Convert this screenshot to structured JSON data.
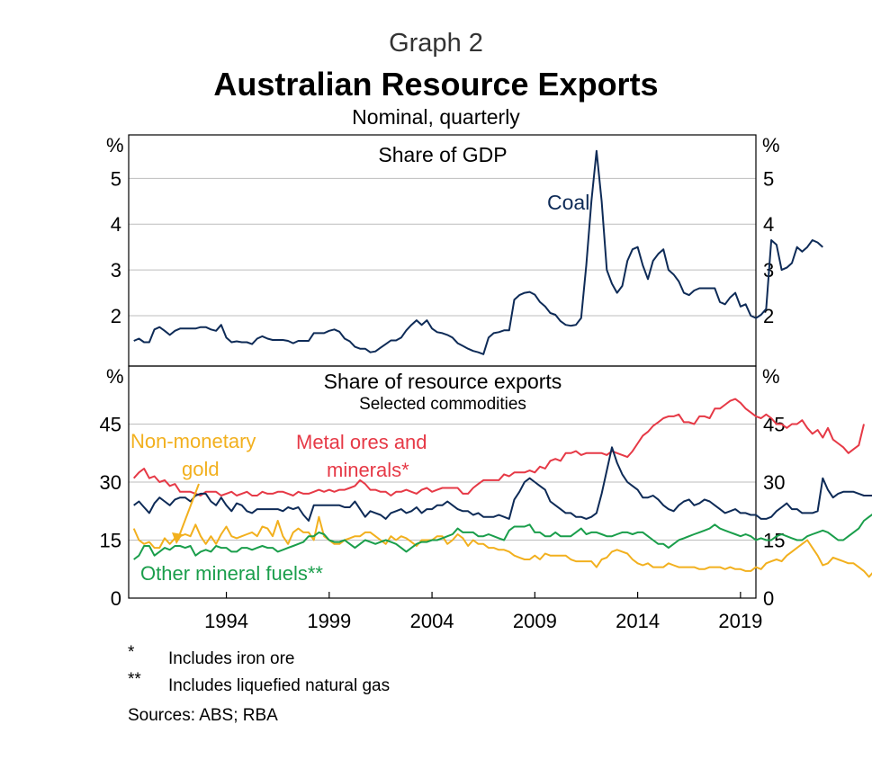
{
  "header": {
    "graph_label": "Graph 2",
    "title": "Australian Resource Exports",
    "subtitle": "Nominal, quarterly"
  },
  "colors": {
    "coal": "#0e2b57",
    "metal": "#e63946",
    "gold": "#f2b01e",
    "fuels": "#1a9e4b",
    "grid": "#bdbdbd",
    "frame": "#000000"
  },
  "chart_data": [
    {
      "type": "line",
      "title": "Share of GDP",
      "ylabel_left": "%",
      "ylabel_right": "%",
      "ylim": [
        0.9,
        5.95
      ],
      "yticks": [
        2,
        3,
        4,
        5
      ],
      "xlim": [
        1989.25,
        2019.75
      ],
      "grid": true,
      "series": [
        {
          "name": "Coal",
          "color_key": "coal",
          "x_start": 1989.5,
          "x_step": 0.25,
          "values": [
            1.45,
            1.5,
            1.42,
            1.42,
            1.7,
            1.75,
            1.67,
            1.58,
            1.67,
            1.72,
            1.72,
            1.72,
            1.72,
            1.75,
            1.75,
            1.7,
            1.67,
            1.8,
            1.52,
            1.42,
            1.44,
            1.42,
            1.42,
            1.38,
            1.5,
            1.55,
            1.5,
            1.47,
            1.47,
            1.47,
            1.45,
            1.4,
            1.45,
            1.45,
            1.45,
            1.62,
            1.62,
            1.62,
            1.67,
            1.7,
            1.65,
            1.5,
            1.44,
            1.32,
            1.28,
            1.28,
            1.2,
            1.22,
            1.3,
            1.38,
            1.46,
            1.46,
            1.52,
            1.68,
            1.8,
            1.9,
            1.8,
            1.9,
            1.72,
            1.64,
            1.62,
            1.58,
            1.52,
            1.4,
            1.34,
            1.28,
            1.23,
            1.2,
            1.16,
            1.52,
            1.62,
            1.64,
            1.68,
            1.68,
            2.35,
            2.45,
            2.5,
            2.52,
            2.46,
            2.3,
            2.2,
            2.06,
            2.02,
            1.88,
            1.8,
            1.78,
            1.8,
            1.95,
            3.1,
            4.5,
            5.6,
            4.5,
            3.0,
            2.7,
            2.5,
            2.65,
            3.2,
            3.45,
            3.5,
            3.1,
            2.8,
            3.2,
            3.35,
            3.45,
            3.0,
            2.9,
            2.75,
            2.5,
            2.45,
            2.55,
            2.6,
            2.6,
            2.6,
            2.6,
            2.3,
            2.25,
            2.4,
            2.5,
            2.2,
            2.25,
            2.0,
            1.95,
            2.02,
            2.15,
            3.65,
            3.55,
            3.0,
            3.05,
            3.15,
            3.5,
            3.4,
            3.5,
            3.65,
            3.6,
            3.5
          ]
        }
      ]
    },
    {
      "type": "line",
      "title": "Share of resource exports",
      "subtitle": "Selected commodities",
      "ylabel_left": "%",
      "ylabel_right": "%",
      "ylim": [
        0,
        60
      ],
      "yticks": [
        0,
        15,
        30,
        45
      ],
      "xlim": [
        1989.25,
        2019.75
      ],
      "grid": true,
      "xticks": [
        1994,
        1999,
        2004,
        2009,
        2014,
        2019
      ],
      "footnote_marks": {
        "metal": "*",
        "fuels": "**"
      },
      "series": [
        {
          "name": "Metal ores and minerals*",
          "color_key": "metal",
          "x_start": 1989.5,
          "x_step": 0.25,
          "values": [
            31,
            32.5,
            33.5,
            31,
            31.5,
            30,
            30.5,
            29,
            29.5,
            27.5,
            27.5,
            27.5,
            27,
            26.5,
            27.5,
            27.5,
            27.5,
            26.5,
            27,
            27.5,
            26.5,
            27,
            27.5,
            26.5,
            26.5,
            27.5,
            27,
            27,
            27.5,
            27.5,
            27,
            26.5,
            27.5,
            27,
            27,
            27.5,
            28,
            27.5,
            28,
            27.5,
            28,
            28,
            28.5,
            29,
            30.5,
            29.5,
            28,
            28,
            27.5,
            27.5,
            26.5,
            27.5,
            27.5,
            28,
            27.5,
            27,
            28,
            28.5,
            27.5,
            28,
            28.5,
            28.5,
            28.5,
            28.5,
            27,
            27,
            28.5,
            29.5,
            30.5,
            30.5,
            30.5,
            30.5,
            32,
            31.5,
            32.5,
            32.5,
            32.5,
            33,
            32.5,
            34,
            33.5,
            35.5,
            36,
            35.5,
            37.5,
            37.5,
            38,
            37,
            37.5,
            37.5,
            37.5,
            37.5,
            37,
            38,
            37.5,
            37,
            36.5,
            38,
            40,
            42,
            43,
            44.5,
            45.5,
            46.5,
            47,
            47,
            47.5,
            45.5,
            45.5,
            45,
            47,
            47,
            46.5,
            49,
            49,
            50,
            51,
            51.5,
            50.5,
            49,
            48,
            47,
            46.5,
            47.5,
            46.5,
            45,
            45,
            44,
            45,
            45,
            46,
            44,
            42.5,
            43.5,
            41.5,
            44,
            41,
            40,
            39,
            37.5,
            38.5,
            39.5,
            45
          ]
        },
        {
          "name": "Coal",
          "color_key": "coal",
          "x_start": 1989.5,
          "x_step": 0.25,
          "values": [
            24,
            25,
            23.5,
            22,
            24.5,
            26,
            25,
            24,
            25.5,
            26,
            26,
            25,
            26.5,
            27,
            27,
            25,
            24,
            26,
            24,
            22.5,
            24.5,
            24,
            22.5,
            22,
            23,
            23,
            23,
            23,
            23,
            22.5,
            23.5,
            23,
            23.5,
            21.5,
            20,
            24,
            24,
            24,
            24,
            24,
            24,
            23.5,
            23.5,
            25,
            23,
            21,
            22.5,
            22,
            21.5,
            20.5,
            22,
            22.5,
            23,
            22,
            22.5,
            23.5,
            22,
            23,
            23,
            24,
            24,
            25,
            24,
            23,
            22.5,
            22.5,
            21.5,
            22,
            21,
            21,
            21,
            21.5,
            21,
            20.5,
            25.5,
            27.5,
            30,
            31,
            30,
            29,
            28,
            25,
            24,
            23,
            22,
            22,
            21,
            21,
            20.5,
            21,
            22,
            27,
            33,
            39,
            35,
            32,
            30,
            29,
            28,
            26,
            26,
            26.5,
            25.5,
            24,
            23,
            22.5,
            24,
            25,
            25.5,
            24,
            24.5,
            25.5,
            25,
            24,
            23,
            22,
            22.5,
            23,
            22,
            22,
            21.5,
            21.5,
            20.5,
            20.5,
            21,
            22.5,
            23.5,
            24.5,
            23,
            23,
            22,
            22,
            22,
            22.5,
            31,
            28,
            26,
            27,
            27.5,
            27.5,
            27.5,
            27,
            26.5,
            26.5,
            26.5,
            26,
            24
          ]
        },
        {
          "name": "Non-monetary gold",
          "color_key": "gold",
          "x_start": 1989.5,
          "x_step": 0.25,
          "values": [
            18,
            15,
            14,
            14.5,
            13,
            13,
            15.5,
            14,
            15.5,
            16,
            16.5,
            16,
            19,
            16,
            14,
            16,
            14,
            16.5,
            18.5,
            16,
            15.5,
            16,
            16.5,
            17,
            16,
            18.5,
            18,
            16,
            20,
            16,
            14,
            17,
            18,
            17,
            17,
            15,
            21,
            16,
            15,
            14,
            14,
            15,
            15.5,
            16,
            16,
            17,
            17,
            16,
            15,
            14,
            16,
            15,
            16,
            15.5,
            14.5,
            13.5,
            15,
            15,
            15,
            16,
            16,
            14,
            15,
            16.5,
            15.5,
            13.5,
            15,
            14,
            14,
            13,
            13,
            12.5,
            12.5,
            12,
            11,
            10.5,
            10,
            10,
            11,
            10,
            11.5,
            11,
            11,
            11,
            11,
            10,
            9.5,
            9.5,
            9.5,
            9.5,
            8,
            10,
            10.5,
            12,
            12.5,
            12,
            11.5,
            10,
            9,
            8.5,
            9,
            8,
            8,
            8,
            9,
            8.5,
            8,
            8,
            8,
            8,
            7.5,
            7.5,
            8,
            8,
            8,
            7.5,
            8,
            7.5,
            7.5,
            7,
            7,
            8,
            7.5,
            9,
            9.5,
            10,
            9.5,
            11,
            12,
            13,
            14,
            15,
            13,
            11,
            8.5,
            9,
            10.5,
            10,
            9.5,
            9,
            9,
            8,
            7,
            5.5,
            7,
            6.5
          ]
        },
        {
          "name": "Other mineral fuels**",
          "color_key": "fuels",
          "x_start": 1989.5,
          "x_step": 0.25,
          "values": [
            10,
            11,
            13.5,
            13.5,
            11,
            12,
            13,
            12.5,
            13.5,
            13.5,
            13,
            13.5,
            11,
            12,
            12.5,
            12,
            13.5,
            13,
            13,
            12,
            12,
            13,
            13,
            12.5,
            13,
            13.5,
            13,
            13,
            12,
            12.5,
            13,
            13.5,
            14,
            14.5,
            16,
            16,
            17,
            16.5,
            15,
            14.5,
            14.5,
            15,
            14,
            13,
            14,
            15,
            14.5,
            14,
            14.5,
            15,
            14.5,
            14,
            13,
            12,
            13,
            14,
            14.5,
            14.5,
            15,
            15,
            15.5,
            16,
            16.5,
            18,
            17,
            17,
            17,
            16,
            16,
            16.5,
            16,
            15.5,
            15,
            17.5,
            18.5,
            18.5,
            18.5,
            19,
            17,
            17,
            16,
            16,
            17,
            16,
            16,
            16,
            17,
            18,
            16.5,
            17,
            17,
            16.5,
            16,
            16,
            16.5,
            17,
            17,
            16.5,
            17,
            17,
            16,
            15,
            14,
            14,
            13,
            14,
            15,
            15.5,
            16,
            16.5,
            17,
            17.5,
            18,
            19,
            18,
            17.5,
            17,
            16.5,
            16,
            16.5,
            16,
            15,
            15.5,
            15,
            15,
            16,
            16.5,
            16,
            15.5,
            15,
            15,
            16,
            16.5,
            17,
            17.5,
            17,
            16,
            15,
            15,
            16,
            17,
            18,
            20,
            21,
            22,
            23,
            24.5,
            23,
            20.5
          ]
        }
      ]
    }
  ],
  "annotations": {
    "coal_upper": "Coal",
    "gold_line1": "Non-monetary",
    "gold_line2": "gold",
    "metal_line1": "Metal ores and",
    "metal_line2": "minerals*",
    "fuels": "Other mineral fuels**"
  },
  "footnotes": [
    {
      "mark": "*",
      "text": "Includes iron ore"
    },
    {
      "mark": "**",
      "text": "Includes liquefied natural gas"
    }
  ],
  "sources": "Sources: ABS; RBA"
}
